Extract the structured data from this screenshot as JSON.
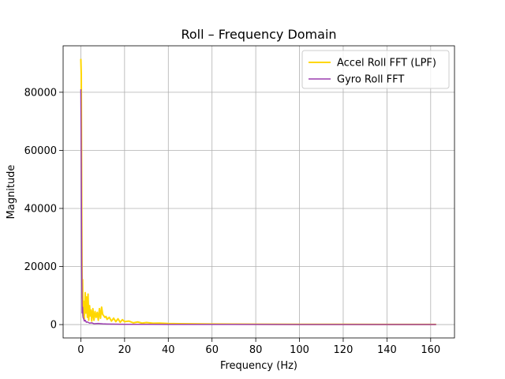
{
  "chart_data": {
    "type": "line",
    "title": "Roll – Frequency Domain",
    "xlabel": "Frequency (Hz)",
    "ylabel": "Magnitude",
    "xlim": [
      -8.1,
      170.9
    ],
    "ylim": [
      -4600,
      96000
    ],
    "xticks": [
      0,
      20,
      40,
      60,
      80,
      100,
      120,
      140,
      160
    ],
    "yticks": [
      0,
      20000,
      40000,
      60000,
      80000
    ],
    "grid": true,
    "legend_position": "top-right",
    "series": [
      {
        "name": "Accel Roll FFT (LPF)",
        "color": "#FFD700",
        "x": [
          0,
          0.2,
          0.4,
          0.6,
          0.8,
          1.0,
          1.3,
          1.6,
          2.0,
          2.3,
          2.6,
          3.0,
          3.3,
          3.6,
          4.0,
          4.3,
          4.6,
          5.0,
          5.5,
          6.0,
          6.5,
          7.0,
          7.5,
          8.0,
          8.5,
          9.0,
          9.5,
          10.0,
          10.5,
          11.0,
          11.5,
          12.0,
          13.0,
          14.0,
          15.0,
          16.0,
          17.0,
          18.0,
          19.0,
          20.0,
          22.0,
          24.0,
          26.0,
          28.0,
          30.0,
          33.0,
          36.0,
          40.0,
          45.0,
          50.0,
          60.0,
          70.0,
          80.0,
          100.0,
          120.0,
          140.0,
          162.5
        ],
        "y": [
          91500,
          86000,
          40000,
          9000,
          15500,
          3000,
          8000,
          2000,
          11000,
          4000,
          9500,
          2500,
          10500,
          1500,
          6500,
          3000,
          5000,
          1200,
          5500,
          1500,
          4500,
          2500,
          4200,
          1500,
          5500,
          2200,
          6000,
          3500,
          3000,
          2500,
          2800,
          1800,
          2500,
          1200,
          2200,
          1000,
          2000,
          800,
          1700,
          1000,
          1200,
          600,
          900,
          500,
          700,
          450,
          500,
          350,
          300,
          250,
          200,
          150,
          120,
          100,
          80,
          60,
          50
        ]
      },
      {
        "name": "Gyro Roll FFT",
        "color": "#9B3DAF",
        "x": [
          0,
          0.2,
          0.4,
          0.6,
          0.8,
          1.0,
          1.3,
          1.6,
          2.0,
          2.5,
          3.0,
          4.0,
          5.0,
          6.0,
          8.0,
          10.0,
          12.0,
          15.0,
          20.0,
          30.0,
          40.0,
          60.0,
          80.0,
          100.0,
          120.0,
          140.0,
          162.5
        ],
        "y": [
          81000,
          55000,
          20000,
          4000,
          6000,
          2500,
          2000,
          1200,
          1500,
          800,
          900,
          500,
          600,
          300,
          400,
          250,
          200,
          150,
          100,
          80,
          60,
          50,
          40,
          30,
          30,
          20,
          20
        ]
      }
    ]
  }
}
